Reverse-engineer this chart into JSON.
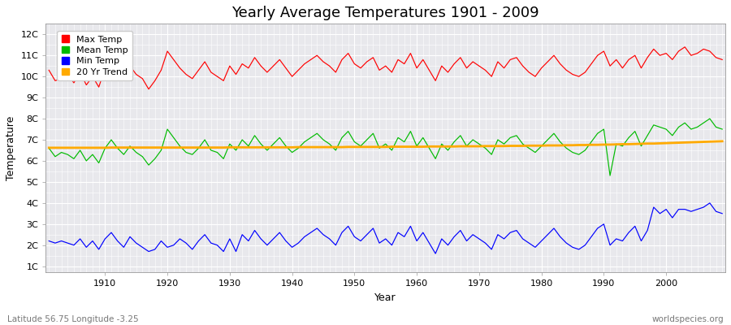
{
  "title": "Yearly Average Temperatures 1901 - 2009",
  "xlabel": "Year",
  "ylabel": "Temperature",
  "lat_lon_text": "Latitude 56.75 Longitude -3.25",
  "source_text": "worldspecies.org",
  "years": [
    1901,
    1902,
    1903,
    1904,
    1905,
    1906,
    1907,
    1908,
    1909,
    1910,
    1911,
    1912,
    1913,
    1914,
    1915,
    1916,
    1917,
    1918,
    1919,
    1920,
    1921,
    1922,
    1923,
    1924,
    1925,
    1926,
    1927,
    1928,
    1929,
    1930,
    1931,
    1932,
    1933,
    1934,
    1935,
    1936,
    1937,
    1938,
    1939,
    1940,
    1941,
    1942,
    1943,
    1944,
    1945,
    1946,
    1947,
    1948,
    1949,
    1950,
    1951,
    1952,
    1953,
    1954,
    1955,
    1956,
    1957,
    1958,
    1959,
    1960,
    1961,
    1962,
    1963,
    1964,
    1965,
    1966,
    1967,
    1968,
    1969,
    1970,
    1971,
    1972,
    1973,
    1974,
    1975,
    1976,
    1977,
    1978,
    1979,
    1980,
    1981,
    1982,
    1983,
    1984,
    1985,
    1986,
    1987,
    1988,
    1989,
    1990,
    1991,
    1992,
    1993,
    1994,
    1995,
    1996,
    1997,
    1998,
    1999,
    2000,
    2001,
    2002,
    2003,
    2004,
    2005,
    2006,
    2007,
    2008,
    2009
  ],
  "max_temp": [
    10.3,
    9.8,
    9.9,
    10.1,
    9.7,
    10.2,
    9.6,
    10.0,
    9.5,
    10.4,
    10.7,
    10.2,
    9.8,
    10.5,
    10.1,
    9.9,
    9.4,
    9.8,
    10.3,
    11.2,
    10.8,
    10.4,
    10.1,
    9.9,
    10.3,
    10.7,
    10.2,
    10.0,
    9.8,
    10.5,
    10.1,
    10.6,
    10.4,
    10.9,
    10.5,
    10.2,
    10.5,
    10.8,
    10.4,
    10.0,
    10.3,
    10.6,
    10.8,
    11.0,
    10.7,
    10.5,
    10.2,
    10.8,
    11.1,
    10.6,
    10.4,
    10.7,
    10.9,
    10.3,
    10.5,
    10.2,
    10.8,
    10.6,
    11.1,
    10.4,
    10.8,
    10.3,
    9.8,
    10.5,
    10.2,
    10.6,
    10.9,
    10.4,
    10.7,
    10.5,
    10.3,
    10.0,
    10.7,
    10.4,
    10.8,
    10.9,
    10.5,
    10.2,
    10.0,
    10.4,
    10.7,
    11.0,
    10.6,
    10.3,
    10.1,
    10.0,
    10.2,
    10.6,
    11.0,
    11.2,
    10.5,
    10.8,
    10.4,
    10.8,
    11.0,
    10.4,
    10.9,
    11.3,
    11.0,
    11.1,
    10.8,
    11.2,
    11.4,
    11.0,
    11.1,
    11.3,
    11.2,
    10.9,
    10.8
  ],
  "mean_temp": [
    6.6,
    6.2,
    6.4,
    6.3,
    6.1,
    6.5,
    6.0,
    6.3,
    5.9,
    6.6,
    7.0,
    6.6,
    6.3,
    6.7,
    6.4,
    6.2,
    5.8,
    6.1,
    6.5,
    7.5,
    7.1,
    6.7,
    6.4,
    6.3,
    6.6,
    7.0,
    6.5,
    6.4,
    6.1,
    6.8,
    6.5,
    7.0,
    6.7,
    7.2,
    6.8,
    6.5,
    6.8,
    7.1,
    6.7,
    6.4,
    6.6,
    6.9,
    7.1,
    7.3,
    7.0,
    6.8,
    6.5,
    7.1,
    7.4,
    6.9,
    6.7,
    7.0,
    7.3,
    6.6,
    6.8,
    6.5,
    7.1,
    6.9,
    7.4,
    6.7,
    7.1,
    6.6,
    6.1,
    6.8,
    6.5,
    6.9,
    7.2,
    6.7,
    7.0,
    6.8,
    6.6,
    6.3,
    7.0,
    6.8,
    7.1,
    7.2,
    6.8,
    6.6,
    6.4,
    6.7,
    7.0,
    7.3,
    6.9,
    6.6,
    6.4,
    6.3,
    6.5,
    6.9,
    7.3,
    7.5,
    5.3,
    6.8,
    6.7,
    7.1,
    7.4,
    6.7,
    7.2,
    7.7,
    7.6,
    7.5,
    7.2,
    7.6,
    7.8,
    7.5,
    7.6,
    7.8,
    8.0,
    7.6,
    7.5
  ],
  "min_temp": [
    2.2,
    2.1,
    2.2,
    2.1,
    2.0,
    2.3,
    1.9,
    2.2,
    1.8,
    2.3,
    2.6,
    2.2,
    1.9,
    2.4,
    2.1,
    1.9,
    1.7,
    1.8,
    2.2,
    1.9,
    2.0,
    2.3,
    2.1,
    1.8,
    2.2,
    2.5,
    2.1,
    2.0,
    1.7,
    2.3,
    1.7,
    2.5,
    2.2,
    2.7,
    2.3,
    2.0,
    2.3,
    2.6,
    2.2,
    1.9,
    2.1,
    2.4,
    2.6,
    2.8,
    2.5,
    2.3,
    2.0,
    2.6,
    2.9,
    2.4,
    2.2,
    2.5,
    2.8,
    2.1,
    2.3,
    2.0,
    2.6,
    2.4,
    2.9,
    2.2,
    2.6,
    2.1,
    1.6,
    2.3,
    2.0,
    2.4,
    2.7,
    2.2,
    2.5,
    2.3,
    2.1,
    1.8,
    2.5,
    2.3,
    2.6,
    2.7,
    2.3,
    2.1,
    1.9,
    2.2,
    2.5,
    2.8,
    2.4,
    2.1,
    1.9,
    1.8,
    2.0,
    2.4,
    2.8,
    3.0,
    2.0,
    2.3,
    2.2,
    2.6,
    2.9,
    2.2,
    2.7,
    3.8,
    3.5,
    3.7,
    3.3,
    3.7,
    3.7,
    3.6,
    3.7,
    3.8,
    4.0,
    3.6,
    3.5
  ],
  "trend_vals": [
    6.62,
    6.62,
    6.62,
    6.62,
    6.62,
    6.62,
    6.62,
    6.62,
    6.62,
    6.62,
    6.63,
    6.63,
    6.63,
    6.63,
    6.63,
    6.63,
    6.63,
    6.63,
    6.63,
    6.63,
    6.63,
    6.63,
    6.63,
    6.63,
    6.63,
    6.63,
    6.63,
    6.63,
    6.63,
    6.64,
    6.64,
    6.64,
    6.64,
    6.64,
    6.64,
    6.64,
    6.64,
    6.64,
    6.64,
    6.64,
    6.65,
    6.65,
    6.65,
    6.65,
    6.65,
    6.65,
    6.65,
    6.65,
    6.66,
    6.66,
    6.66,
    6.66,
    6.66,
    6.66,
    6.66,
    6.67,
    6.67,
    6.67,
    6.67,
    6.67,
    6.67,
    6.68,
    6.68,
    6.68,
    6.68,
    6.68,
    6.69,
    6.69,
    6.69,
    6.69,
    6.7,
    6.7,
    6.7,
    6.7,
    6.71,
    6.71,
    6.71,
    6.72,
    6.72,
    6.72,
    6.73,
    6.73,
    6.73,
    6.74,
    6.74,
    6.75,
    6.75,
    6.76,
    6.76,
    6.77,
    6.77,
    6.78,
    6.79,
    6.79,
    6.8,
    6.81,
    6.82,
    6.82,
    6.83,
    6.84,
    6.85,
    6.86,
    6.87,
    6.88,
    6.89,
    6.9,
    6.91,
    6.92,
    6.93
  ],
  "max_color": "#ff0000",
  "mean_color": "#00bb00",
  "min_color": "#0000ff",
  "trend_color": "#ffaa00",
  "fig_bg_color": "#ffffff",
  "plot_bg_color": "#e8e8ec",
  "grid_color": "#ffffff",
  "ytick_labels": [
    "1C",
    "2C",
    "3C",
    "4C",
    "5C",
    "6C",
    "7C",
    "8C",
    "9C",
    "10C",
    "11C",
    "12C"
  ],
  "ytick_values": [
    1,
    2,
    3,
    4,
    5,
    6,
    7,
    8,
    9,
    10,
    11,
    12
  ],
  "ylim": [
    0.7,
    12.5
  ],
  "xlim": [
    1900.5,
    2009.5
  ],
  "title_fontsize": 13,
  "axis_label_fontsize": 9,
  "tick_fontsize": 8,
  "legend_labels": [
    "Max Temp",
    "Mean Temp",
    "Min Temp",
    "20 Yr Trend"
  ],
  "legend_colors": [
    "#ff0000",
    "#00bb00",
    "#0000ff",
    "#ffaa00"
  ]
}
